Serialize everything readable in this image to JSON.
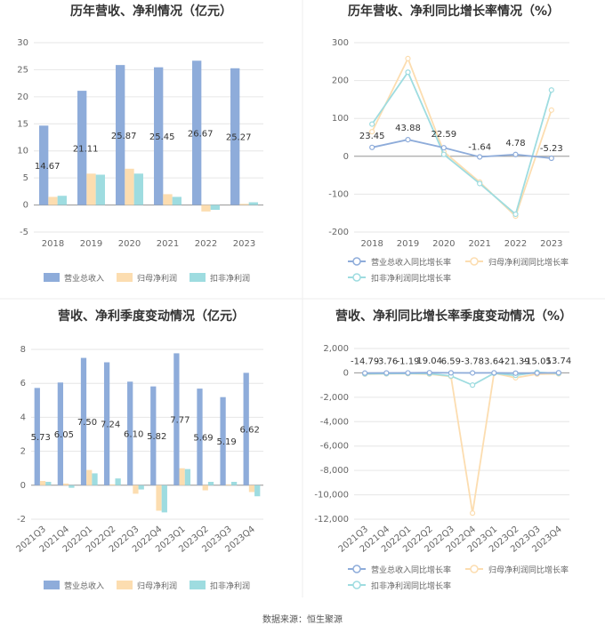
{
  "source": "数据来源：恒生聚源",
  "colors": {
    "revenue": "#8EACDA",
    "parent_profit": "#FCDDB0",
    "deducted_profit": "#9EDCE0",
    "grid": "#E6E6E6",
    "axis": "#999999",
    "divider": "#EEEEEE"
  },
  "chart_data": [
    {
      "type": "bar",
      "title": "历年营收、净利情况（亿元）",
      "categories": [
        "2018",
        "2019",
        "2020",
        "2021",
        "2022",
        "2023"
      ],
      "ylim": [
        -5,
        30
      ],
      "yticks": [
        -5,
        0,
        5,
        10,
        15,
        20,
        25,
        30
      ],
      "series": [
        {
          "name": "营业总收入",
          "values": [
            14.67,
            21.11,
            25.87,
            25.45,
            26.67,
            25.27
          ]
        },
        {
          "name": "归母净利润",
          "values": [
            1.5,
            5.8,
            6.7,
            2.0,
            -1.2,
            0.2
          ]
        },
        {
          "name": "扣非净利润",
          "values": [
            1.7,
            5.6,
            5.8,
            1.5,
            -0.9,
            0.5
          ]
        }
      ],
      "labels": [
        "14.67",
        "21.11",
        "25.87",
        "25.45",
        "26.67",
        "25.27"
      ],
      "legend_position": "bottom"
    },
    {
      "type": "line",
      "title": "历年营收、净利同比增长率情况（%）",
      "categories": [
        "2018",
        "2019",
        "2020",
        "2021",
        "2022",
        "2023"
      ],
      "ylim": [
        -200,
        300
      ],
      "yticks": [
        -200,
        -100,
        0,
        100,
        200,
        300
      ],
      "series": [
        {
          "name": "营业总收入同比增长率",
          "values": [
            23.45,
            43.88,
            22.59,
            -1.64,
            4.78,
            -5.23
          ]
        },
        {
          "name": "归母净利润同比增长率",
          "values": [
            65,
            258,
            12,
            -68,
            -158,
            122
          ]
        },
        {
          "name": "扣非净利润同比增长率",
          "values": [
            85,
            222,
            5,
            -72,
            -153,
            175
          ]
        }
      ],
      "labels": [
        "23.45",
        "43.88",
        "22.59",
        "-1.64",
        "4.78",
        "-5.23"
      ],
      "legend_position": "bottom"
    },
    {
      "type": "bar",
      "title": "营收、净利季度变动情况（亿元）",
      "categories": [
        "2021Q3",
        "2021Q4",
        "2022Q1",
        "2022Q2",
        "2022Q3",
        "2022Q4",
        "2023Q1",
        "2023Q2",
        "2023Q3",
        "2023Q4"
      ],
      "ylim": [
        -2,
        8
      ],
      "yticks": [
        -2,
        0,
        2,
        4,
        6,
        8
      ],
      "series": [
        {
          "name": "营业总收入",
          "values": [
            5.73,
            6.05,
            7.5,
            7.24,
            6.1,
            5.82,
            7.77,
            5.69,
            5.19,
            6.62
          ]
        },
        {
          "name": "归母净利润",
          "values": [
            0.25,
            0.1,
            0.9,
            0.05,
            -0.5,
            -1.5,
            1.0,
            -0.3,
            0.05,
            -0.4
          ]
        },
        {
          "name": "扣非净利润",
          "values": [
            0.2,
            -0.15,
            0.7,
            0.4,
            -0.25,
            -1.6,
            0.95,
            0.2,
            0.2,
            -0.65
          ]
        }
      ],
      "labels": [
        "5.73",
        "6.05",
        "7.50",
        "7.24",
        "6.10",
        "5.82",
        "7.77",
        "5.69",
        "5.19",
        "6.62"
      ],
      "legend_position": "bottom"
    },
    {
      "type": "line",
      "title": "营收、净利同比增长率季度变动情况（%）",
      "categories": [
        "2021Q3",
        "2021Q4",
        "2022Q1",
        "2022Q2",
        "2022Q3",
        "2022Q4",
        "2023Q1",
        "2023Q2",
        "2023Q3",
        "2023Q4"
      ],
      "ylim": [
        -12000,
        2000
      ],
      "yticks": [
        -12000,
        -10000,
        -8000,
        -6000,
        -4000,
        -2000,
        0,
        2000
      ],
      "ytick_labels": [
        "-12,000",
        "-10,000",
        "-8,000",
        "-6,000",
        "-4,000",
        "-2,000",
        "0",
        "2,000"
      ],
      "series": [
        {
          "name": "营业总收入同比增长率",
          "values": [
            -14.79,
            -3.76,
            -1.19,
            19.04,
            6.59,
            -3.78,
            3.64,
            -21.39,
            -15.05,
            13.74
          ]
        },
        {
          "name": "归母净利润同比增长率",
          "values": [
            -100,
            -80,
            -60,
            -100,
            -300,
            -11500,
            -20,
            -400,
            -100,
            -80
          ]
        },
        {
          "name": "扣非净利润同比增长率",
          "values": [
            -80,
            -60,
            -40,
            -60,
            -250,
            -1000,
            -30,
            -200,
            50,
            -40
          ]
        }
      ],
      "labels": [
        "-14.79",
        "-3.76",
        "-1.19",
        "19.04",
        "6.59",
        "-3.78",
        "3.64",
        "-21.39",
        "-15.05",
        "13.74"
      ],
      "legend_position": "bottom"
    }
  ]
}
